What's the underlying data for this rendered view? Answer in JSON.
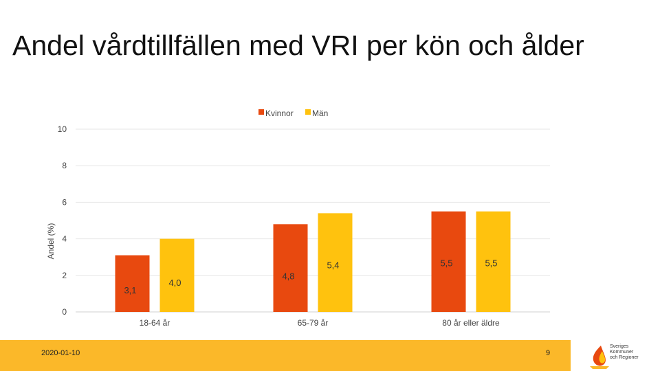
{
  "title": "Andel vårdtillfällen med VRI per kön och ålder",
  "chart_data": {
    "type": "bar",
    "categories": [
      "18-64 år",
      "65-79 år",
      "80 år eller äldre"
    ],
    "series": [
      {
        "name": "Kvinnor",
        "values": [
          3.1,
          4.8,
          5.5
        ],
        "labels": [
          "3,1",
          "4,8",
          "5,5"
        ],
        "color": "#E8490F"
      },
      {
        "name": "Män",
        "values": [
          4.0,
          5.4,
          5.5
        ],
        "labels": [
          "4,0",
          "5,4",
          "5,5"
        ],
        "color": "#FFC20E"
      }
    ],
    "ylabel": "Andel (%)",
    "ylim": [
      0,
      10
    ],
    "yticks": [
      0,
      2,
      4,
      6,
      8,
      10
    ],
    "legend": "top-center",
    "grid": true
  },
  "footer": {
    "date": "2020-01-10",
    "page": "9",
    "bar_color": "#FBB829",
    "logo_text": [
      "Sveriges",
      "Kommuner",
      "och Regioner"
    ]
  }
}
